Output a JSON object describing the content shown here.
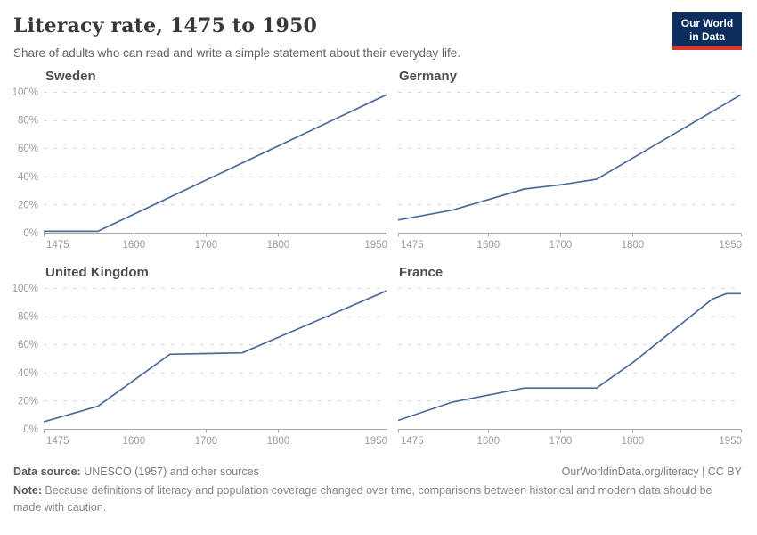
{
  "chart_data": {
    "type": "line",
    "title": "Literacy rate, 1475 to 1950",
    "subtitle": "Share of adults who can read and write a simple statement about their everyday life.",
    "xlim": [
      1475,
      1950
    ],
    "ylim": [
      0,
      100
    ],
    "x_ticks": [
      1475,
      1600,
      1700,
      1800,
      1950
    ],
    "y_ticks": [
      0,
      20,
      40,
      60,
      80,
      100
    ],
    "y_tick_suffix": "%",
    "grid": "horizontal-dashed",
    "legend": "none (small multiples, one facet per country)",
    "facets": [
      {
        "name": "Sweden",
        "points": [
          [
            1475,
            1
          ],
          [
            1550,
            1
          ],
          [
            1950,
            98
          ]
        ]
      },
      {
        "name": "Germany",
        "points": [
          [
            1475,
            9
          ],
          [
            1550,
            16
          ],
          [
            1650,
            31
          ],
          [
            1700,
            34
          ],
          [
            1750,
            38
          ],
          [
            1950,
            98
          ]
        ]
      },
      {
        "name": "United Kingdom",
        "points": [
          [
            1475,
            5
          ],
          [
            1550,
            16
          ],
          [
            1650,
            53
          ],
          [
            1700,
            53.5
          ],
          [
            1750,
            54
          ],
          [
            1950,
            98
          ]
        ]
      },
      {
        "name": "France",
        "points": [
          [
            1475,
            6
          ],
          [
            1550,
            19
          ],
          [
            1650,
            29
          ],
          [
            1750,
            29
          ],
          [
            1800,
            47
          ],
          [
            1910,
            92
          ],
          [
            1930,
            96
          ],
          [
            1950,
            96
          ]
        ]
      }
    ],
    "style": {
      "line_color": "#4c6a9c",
      "grid_color": "#dadada",
      "axis_color": "#a8a8a8",
      "tick_label_color": "#9b9b9b"
    }
  },
  "header": {
    "logo": {
      "line1": "Our World",
      "line2": "in Data",
      "bg": "#0b2e5e",
      "stripe": "#dc352c"
    }
  },
  "footer": {
    "source_label": "Data source:",
    "source_text": " UNESCO (1957) and other sources",
    "link": "OurWorldinData.org/literacy | CC BY",
    "note_label": "Note:",
    "note_text": " Because definitions of literacy and population coverage changed over time, comparisons between historical and modern data should be made with caution."
  }
}
